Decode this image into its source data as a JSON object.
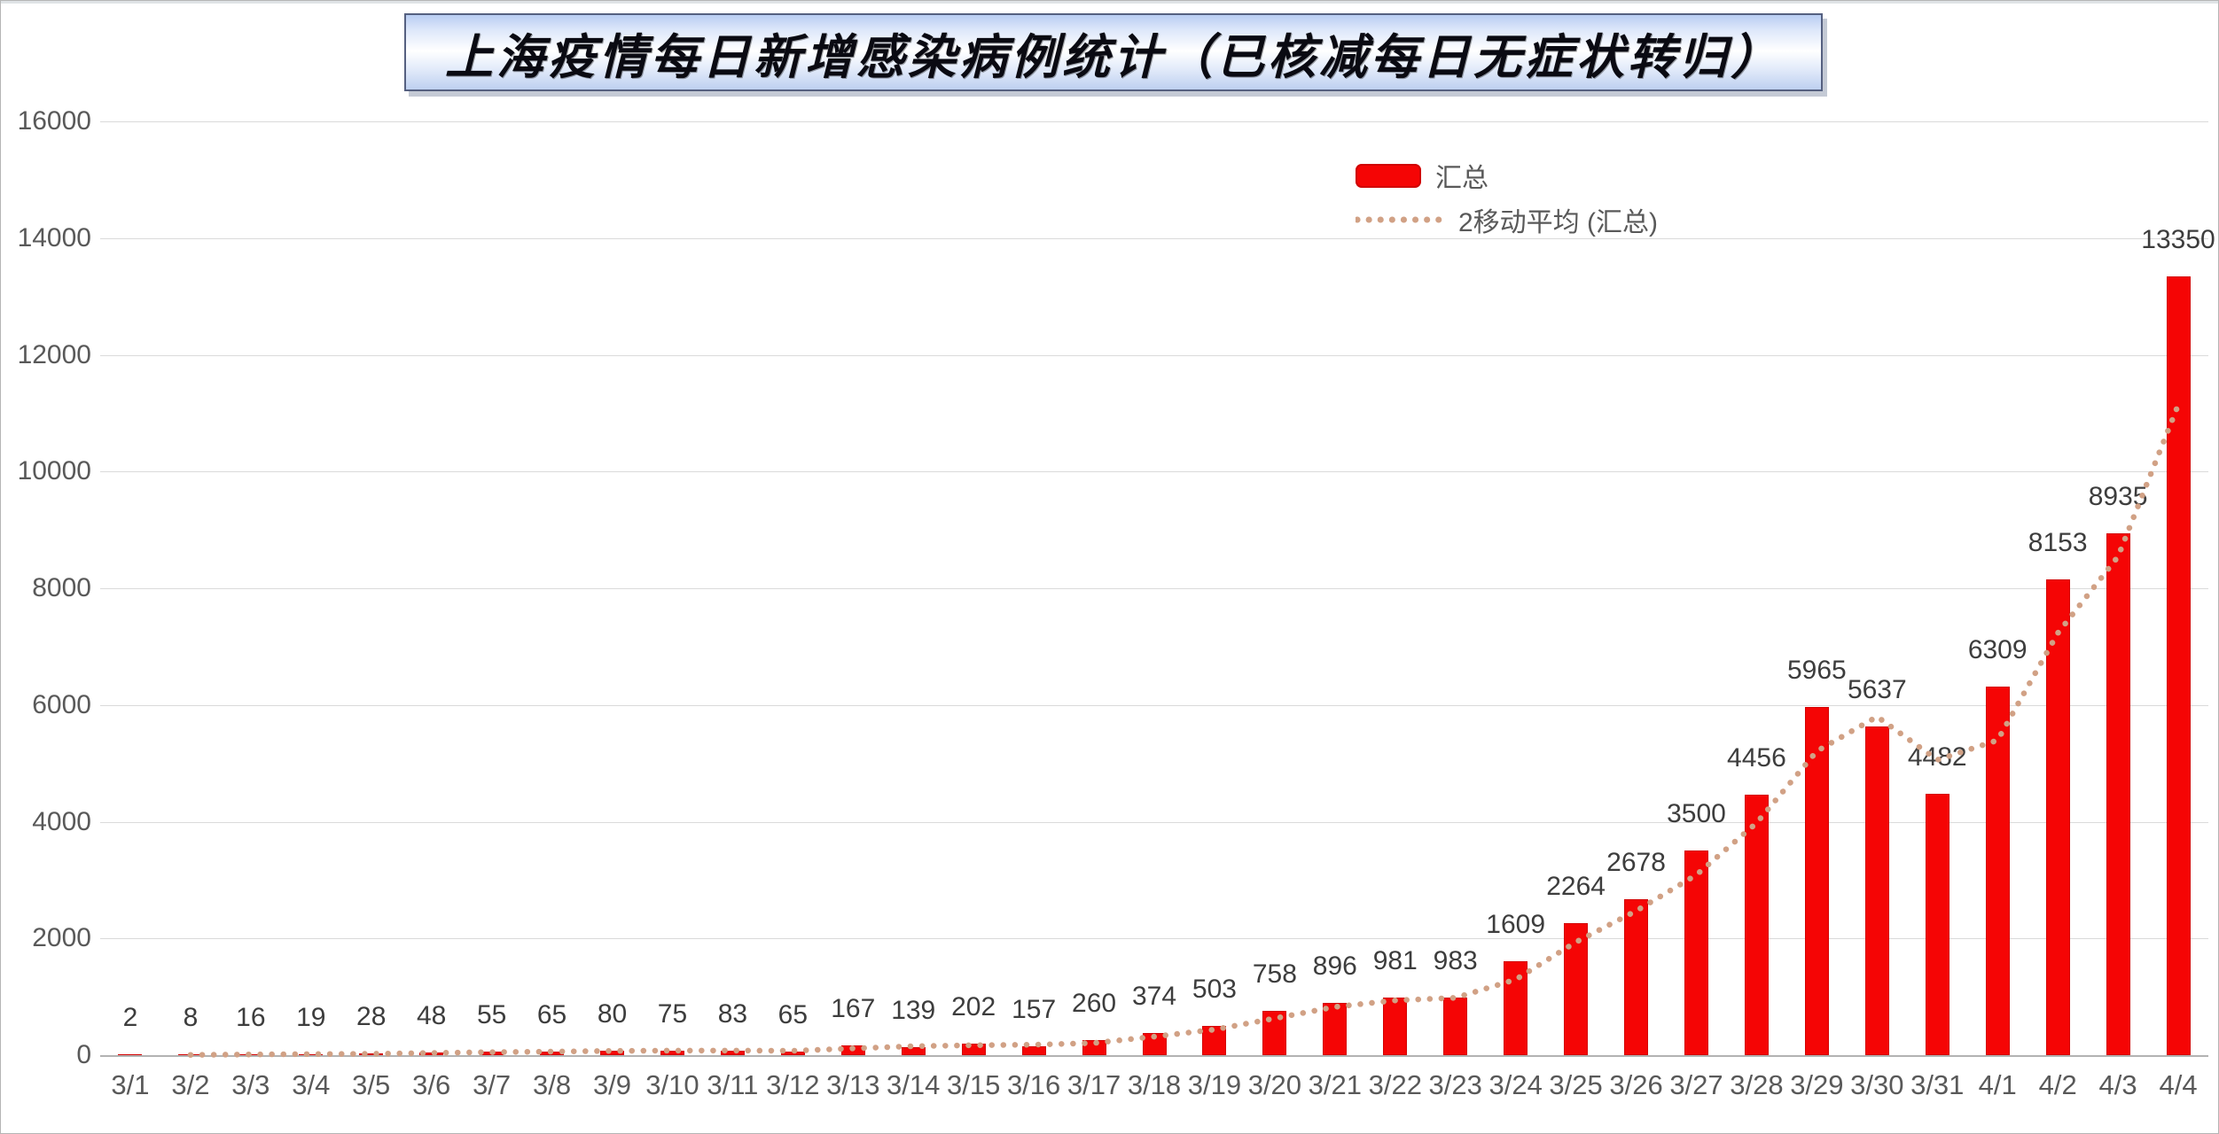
{
  "title": "上海疫情每日新增感染病例统计（已核减每日无症状转归）",
  "legend": {
    "items": [
      {
        "label": "汇总",
        "swatch": "red-bar"
      },
      {
        "label": "2移动平均 (汇总)",
        "swatch": "dotted-line"
      }
    ]
  },
  "y_axis": {
    "tick_labels": [
      "16000",
      "14000",
      "12000",
      "10000",
      "8000",
      "6000",
      "4000",
      "2000",
      "0"
    ]
  },
  "chart_data": {
    "type": "bar",
    "title": "上海疫情每日新增感染病例统计（已核减每日无症状转归）",
    "categories": [
      "3/1",
      "3/2",
      "3/3",
      "3/4",
      "3/5",
      "3/6",
      "3/7",
      "3/8",
      "3/9",
      "3/10",
      "3/11",
      "3/12",
      "3/13",
      "3/14",
      "3/15",
      "3/16",
      "3/17",
      "3/18",
      "3/19",
      "3/20",
      "3/21",
      "3/22",
      "3/23",
      "3/24",
      "3/25",
      "3/26",
      "3/27",
      "3/28",
      "3/29",
      "3/30",
      "3/31",
      "4/1",
      "4/2",
      "4/3",
      "4/4"
    ],
    "series": [
      {
        "name": "汇总",
        "type": "bar",
        "color": "#f50505",
        "data_labels": true,
        "values": [
          2,
          8,
          16,
          19,
          28,
          48,
          55,
          65,
          80,
          75,
          83,
          65,
          167,
          139,
          202,
          157,
          260,
          374,
          503,
          758,
          896,
          981,
          983,
          1609,
          2264,
          2678,
          3500,
          4456,
          5965,
          5637,
          4482,
          6309,
          8153,
          8935,
          13350
        ]
      },
      {
        "name": "2移动平均 (汇总)",
        "type": "dotted-line",
        "color": "#d1a185",
        "data_labels": false,
        "values": [
          null,
          5,
          12,
          17.5,
          23.5,
          38,
          51.5,
          60,
          72.5,
          77.5,
          79,
          74,
          116,
          153,
          170.5,
          179.5,
          208.5,
          317,
          438.5,
          630.5,
          827,
          938.5,
          982,
          1296,
          1936.5,
          2471,
          3089,
          3978,
          5210.5,
          5801,
          5059.5,
          5395.5,
          7231,
          8544,
          11142.5
        ]
      }
    ],
    "ylim": [
      0,
      16000
    ],
    "ytick_step": 2000,
    "grid": "horizontal",
    "legend_position": "inside-top-right",
    "xlabel": "",
    "ylabel": ""
  },
  "colors": {
    "bar": "#f50505",
    "moving_average": "#d1a185",
    "gridline": "#dadada",
    "axis_text": "#595959",
    "data_label_text": "#3d3d3d",
    "title_border": "#556080"
  }
}
